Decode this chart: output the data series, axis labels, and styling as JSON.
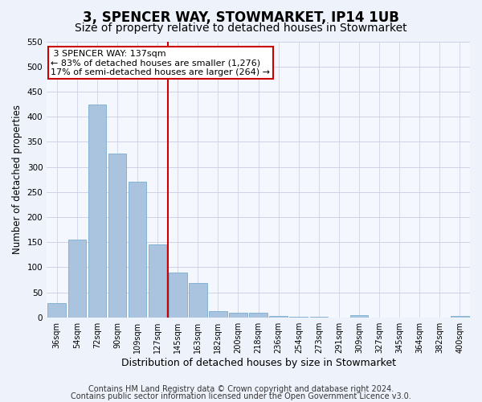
{
  "title1": "3, SPENCER WAY, STOWMARKET, IP14 1UB",
  "title2": "Size of property relative to detached houses in Stowmarket",
  "xlabel": "Distribution of detached houses by size in Stowmarket",
  "ylabel": "Number of detached properties",
  "categories": [
    "36sqm",
    "54sqm",
    "72sqm",
    "90sqm",
    "109sqm",
    "127sqm",
    "145sqm",
    "163sqm",
    "182sqm",
    "200sqm",
    "218sqm",
    "236sqm",
    "254sqm",
    "273sqm",
    "291sqm",
    "309sqm",
    "327sqm",
    "345sqm",
    "364sqm",
    "382sqm",
    "400sqm"
  ],
  "values": [
    28,
    155,
    425,
    327,
    270,
    145,
    90,
    68,
    12,
    9,
    9,
    3,
    1,
    1,
    0,
    5,
    0,
    0,
    0,
    0,
    3
  ],
  "bar_color": "#aac4df",
  "bar_edge_color": "#7aadd0",
  "reference_line_label": "3 SPENCER WAY: 137sqm",
  "annotation_line1": "← 83% of detached houses are smaller (1,276)",
  "annotation_line2": "17% of semi-detached houses are larger (264) →",
  "annotation_box_color": "#ffffff",
  "annotation_box_edge": "#cc0000",
  "ref_line_color": "#cc0000",
  "ref_line_index": 6,
  "ylim": [
    0,
    550
  ],
  "yticks": [
    0,
    50,
    100,
    150,
    200,
    250,
    300,
    350,
    400,
    450,
    500,
    550
  ],
  "footer1": "Contains HM Land Registry data © Crown copyright and database right 2024.",
  "footer2": "Contains public sector information licensed under the Open Government Licence v3.0.",
  "bg_color": "#eef2fb",
  "plot_bg_color": "#f5f7ff",
  "title1_fontsize": 12,
  "title2_fontsize": 10,
  "xlabel_fontsize": 9,
  "ylabel_fontsize": 8.5,
  "footer_fontsize": 7,
  "ann_fontsize": 8,
  "tick_fontsize": 7
}
